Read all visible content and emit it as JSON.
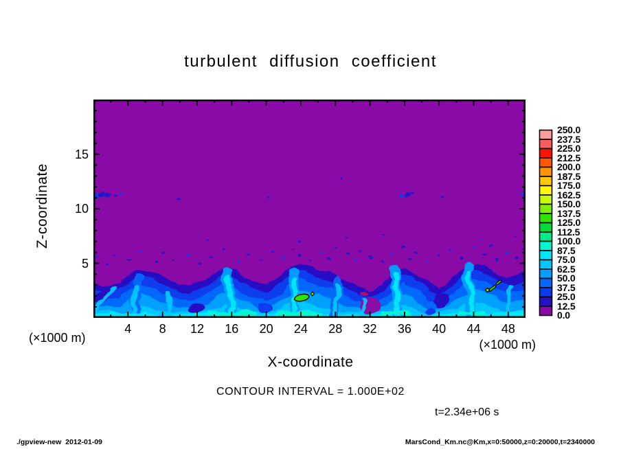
{
  "title": "turbulent diffusion coefficient",
  "plot": {
    "x_axis": {
      "label": "X-coordinate",
      "unit": "(×1000 m)",
      "range": [
        0,
        50
      ],
      "ticks": [
        4,
        8,
        12,
        16,
        20,
        24,
        28,
        32,
        36,
        40,
        44,
        48
      ],
      "minor_step": 2,
      "major_step": 4
    },
    "y_axis": {
      "label": "Z-coordinate",
      "unit": "(×1000 m)",
      "range": [
        0,
        20
      ],
      "ticks": [
        5,
        10,
        15
      ],
      "minor_step": 1,
      "major_step": 5
    }
  },
  "captions": {
    "contour_interval": "CONTOUR INTERVAL = 1.000E+02",
    "time_stamp": "t=2.34e+06 s",
    "unit_left": "(×1000 m)",
    "unit_right": "(×1000 m)"
  },
  "footer": {
    "left": "./gpview-new  2012-01-09",
    "right": "MarsCond_Km.nc@Km,x=0:50000,z=0:20000,t=2340000"
  },
  "colorbar": {
    "min": 0.0,
    "max": 250.0,
    "step": 12.5,
    "labels_top_to_bottom": [
      "250.0",
      "237.5",
      "225.0",
      "212.5",
      "200.0",
      "187.5",
      "175.0",
      "162.5",
      "150.0",
      "137.5",
      "125.0",
      "112.5",
      "100.0",
      "87.5",
      "75.0",
      "62.5",
      "50.0",
      "37.5",
      "25.0",
      "12.5",
      "0.0"
    ],
    "colors_bottom_to_top": [
      "#8A0AA8",
      "#2810C4",
      "#0A3CEC",
      "#0668FA",
      "#02A0FF",
      "#00C8FF",
      "#00E8F8",
      "#00F8D0",
      "#00EC88",
      "#00DC38",
      "#30E400",
      "#80F000",
      "#C8FC00",
      "#FFF800",
      "#FFC800",
      "#FF9400",
      "#FF5800",
      "#FC1400",
      "#FF5C5C",
      "#FF9C9C"
    ]
  },
  "chart_data": {
    "type": "heatmap",
    "title": "turbulent diffusion coefficient",
    "xlabel": "X-coordinate (×1000 m)",
    "ylabel": "Z-coordinate (×1000 m)",
    "xlim": [
      0,
      50
    ],
    "ylim": [
      0,
      20
    ],
    "value_range": [
      0.0,
      250.0
    ],
    "colorbar_step": 12.5,
    "contour_interval": 100.0,
    "time": "t=2.34e+06 s",
    "description": "Turbulent diffusion coefficient field: values below 12.5 (purple) fill most of the domain; a convective boundary layer below z≈3-5 km holds values 12.5-100 (blues/cyans) with plume cores, and a few isolated spots exceed 100 (green, outlined by the 100-contour).",
    "background_color": "#8A0AA8",
    "boundary": [
      [
        0,
        3.3
      ],
      [
        1,
        3.05
      ],
      [
        2,
        3.0
      ],
      [
        3,
        3.3
      ],
      [
        4,
        3.9
      ],
      [
        5,
        4.5
      ],
      [
        6,
        4.4
      ],
      [
        7,
        4.1
      ],
      [
        8,
        3.7
      ],
      [
        9,
        3.4
      ],
      [
        10,
        3.1
      ],
      [
        11,
        3.0
      ],
      [
        12,
        3.2
      ],
      [
        13,
        3.5
      ],
      [
        14,
        4.1
      ],
      [
        15,
        4.6
      ],
      [
        16,
        4.5
      ],
      [
        17,
        4.0
      ],
      [
        18,
        3.5
      ],
      [
        19,
        3.2
      ],
      [
        20,
        3.1
      ],
      [
        21,
        3.6
      ],
      [
        22,
        4.2
      ],
      [
        23,
        4.7
      ],
      [
        24,
        4.85
      ],
      [
        25,
        4.6
      ],
      [
        26,
        4.4
      ],
      [
        27,
        4.2
      ],
      [
        28,
        4.0
      ],
      [
        29,
        3.6
      ],
      [
        30,
        3.2
      ],
      [
        31,
        2.8
      ],
      [
        32,
        2.6
      ],
      [
        33,
        3.0
      ],
      [
        34,
        3.5
      ],
      [
        35,
        4.3
      ],
      [
        36,
        4.6
      ],
      [
        37,
        4.2
      ],
      [
        38,
        3.6
      ],
      [
        39,
        3.1
      ],
      [
        40,
        2.8
      ],
      [
        41,
        3.3
      ],
      [
        42,
        4.0
      ],
      [
        43,
        4.6
      ],
      [
        44,
        5.0
      ],
      [
        45,
        4.8
      ],
      [
        46,
        4.4
      ],
      [
        47,
        4.0
      ],
      [
        48,
        3.7
      ],
      [
        49,
        3.8
      ],
      [
        50,
        4.0
      ]
    ],
    "layers": [
      {
        "offset": 0.0,
        "floor": 2.2,
        "color": "#2810C4"
      },
      {
        "offset": -0.65,
        "floor": 1.75,
        "color": "#0A3CEC"
      },
      {
        "offset": -1.45,
        "floor": 1.35,
        "color": "#0668FA"
      },
      {
        "offset": -2.35,
        "floor": 0.95,
        "color": "#02A0FF"
      },
      {
        "offset": -3.3,
        "floor": 0.55,
        "color": "#00C8FF"
      },
      {
        "offset": -4.3,
        "floor": 0.26,
        "color": "#00E8F8"
      }
    ],
    "holes": [
      [
        32.0,
        1.15,
        1.3,
        0.75,
        "#8A0AA8"
      ],
      [
        11.8,
        0.85,
        0.95,
        0.5,
        "#2810C4"
      ],
      [
        40.3,
        1.6,
        0.85,
        0.7,
        "#2810C4"
      ],
      [
        0.9,
        1.9,
        0.8,
        0.6,
        "#2810C4"
      ],
      [
        19.8,
        0.9,
        0.9,
        0.5,
        "#0A3CEC"
      ],
      [
        38.9,
        0.7,
        0.7,
        0.4,
        "#0A3CEC"
      ],
      [
        31.4,
        2.35,
        0.55,
        0.18,
        "#B00878"
      ]
    ],
    "streaks": [
      [
        5.0,
        0.1,
        4.6,
        2.0,
        5.3,
        3.7,
        13,
        "#0668FA"
      ],
      [
        15.8,
        0.1,
        16.2,
        2.2,
        15.3,
        4.2,
        15,
        "#02A0FF"
      ],
      [
        23.5,
        0.1,
        23.1,
        2.0,
        23.2,
        4.1,
        14,
        "#02A0FF"
      ],
      [
        27.7,
        0.1,
        28.2,
        1.8,
        28.4,
        3.5,
        12,
        "#0668FA"
      ],
      [
        35.4,
        0.1,
        35.0,
        2.2,
        34.9,
        4.3,
        15,
        "#02A0FF"
      ],
      [
        43.8,
        0.1,
        43.4,
        2.4,
        43.3,
        4.7,
        15,
        "#02A0FF"
      ],
      [
        4.8,
        0.1,
        4.6,
        1.4,
        4.9,
        2.9,
        7,
        "#00C8FF"
      ],
      [
        9.0,
        0.1,
        8.7,
        1.2,
        8.6,
        2.4,
        6,
        "#00C8FF"
      ],
      [
        16.0,
        0.1,
        16.1,
        1.6,
        15.6,
        3.7,
        8,
        "#00E8F8"
      ],
      [
        23.4,
        0.1,
        23.2,
        1.6,
        23.3,
        3.3,
        7,
        "#00E8F8"
      ],
      [
        27.8,
        0.1,
        28.2,
        1.5,
        28.3,
        3.1,
        6,
        "#00C8FF"
      ],
      [
        31.1,
        0.1,
        31.2,
        0.9,
        31.3,
        1.7,
        5,
        "#00C8FF"
      ],
      [
        35.3,
        0.1,
        35.1,
        1.8,
        35.0,
        3.9,
        8,
        "#00E8F8"
      ],
      [
        44.0,
        0.1,
        43.6,
        1.8,
        43.5,
        4.1,
        7,
        "#00E8F8"
      ],
      [
        47.7,
        0.1,
        48.0,
        1.4,
        48.3,
        2.9,
        6,
        "#00C8FF"
      ],
      [
        0.2,
        0.5,
        1.2,
        1.9,
        2.6,
        2.7,
        6,
        "#00C8FF"
      ],
      [
        13.5,
        0.35,
        16.0,
        0.5,
        18.5,
        0.35,
        7,
        "#00F8D0"
      ],
      [
        21.5,
        0.3,
        23.5,
        0.5,
        26.0,
        0.3,
        7,
        "#00F8D0"
      ],
      [
        33.5,
        0.35,
        35.0,
        0.55,
        36.5,
        0.35,
        6,
        "#00F8D0"
      ],
      [
        42.5,
        0.4,
        43.8,
        0.6,
        45.2,
        0.4,
        7,
        "#00F8D0"
      ],
      [
        2.0,
        0.3,
        4.0,
        0.45,
        6.0,
        0.3,
        6,
        "#00E8F8"
      ],
      [
        46.5,
        0.3,
        48.0,
        0.45,
        49.8,
        0.3,
        6,
        "#00E8F8"
      ]
    ],
    "specks": [
      [
        0.4,
        11.25,
        0.3
      ],
      [
        1.0,
        11.3,
        0.34
      ],
      [
        1.7,
        11.28,
        0.3
      ],
      [
        2.5,
        11.18,
        0.22
      ],
      [
        3.15,
        11.38,
        0.2
      ],
      [
        9.9,
        10.95,
        0.18
      ],
      [
        20.2,
        11.0,
        0.15
      ],
      [
        28.6,
        12.75,
        0.14
      ],
      [
        35.7,
        11.15,
        0.26
      ],
      [
        36.3,
        11.3,
        0.3
      ],
      [
        36.9,
        11.45,
        0.22
      ],
      [
        40.3,
        11.05,
        0.16
      ],
      [
        49.7,
        11.3,
        0.26
      ],
      [
        49.9,
        10.8,
        0.2
      ],
      [
        33.6,
        7.6,
        0.16
      ],
      [
        29.2,
        7.35,
        0.13
      ],
      [
        44.8,
        7.2,
        0.15
      ],
      [
        13.2,
        7.1,
        0.12
      ],
      [
        48.9,
        7.5,
        0.14
      ],
      [
        23.9,
        7.0,
        0.13
      ],
      [
        0.3,
        5.6,
        0.18
      ],
      [
        1.5,
        4.95,
        0.16
      ],
      [
        2.4,
        5.8,
        0.14
      ],
      [
        4.1,
        5.3,
        0.18
      ],
      [
        5.6,
        6.1,
        0.14
      ],
      [
        7.3,
        5.05,
        0.16
      ],
      [
        8.0,
        5.9,
        0.13
      ],
      [
        9.2,
        5.4,
        0.15
      ],
      [
        11.0,
        5.7,
        0.16
      ],
      [
        12.2,
        4.95,
        0.14
      ],
      [
        13.6,
        5.5,
        0.17
      ],
      [
        15.1,
        6.2,
        0.13
      ],
      [
        16.8,
        5.15,
        0.16
      ],
      [
        18.0,
        5.8,
        0.14
      ],
      [
        19.4,
        5.35,
        0.15
      ],
      [
        20.8,
        6.0,
        0.14
      ],
      [
        22.0,
        5.45,
        0.16
      ],
      [
        23.2,
        6.3,
        0.14
      ],
      [
        23.8,
        5.7,
        0.2
      ],
      [
        25.0,
        5.2,
        0.15
      ],
      [
        26.3,
        6.0,
        0.14
      ],
      [
        27.2,
        5.5,
        0.2
      ],
      [
        27.9,
        6.4,
        0.16
      ],
      [
        29.4,
        5.8,
        0.22
      ],
      [
        30.2,
        5.3,
        0.16
      ],
      [
        30.9,
        6.1,
        0.15
      ],
      [
        32.1,
        5.6,
        0.2
      ],
      [
        33.4,
        5.05,
        0.16
      ],
      [
        34.6,
        5.9,
        0.15
      ],
      [
        35.9,
        6.5,
        0.14
      ],
      [
        36.6,
        5.4,
        0.2
      ],
      [
        37.3,
        6.0,
        0.15
      ],
      [
        38.6,
        5.2,
        0.14
      ],
      [
        39.9,
        5.7,
        0.16
      ],
      [
        41.3,
        6.2,
        0.14
      ],
      [
        42.6,
        5.5,
        0.15
      ],
      [
        43.9,
        6.4,
        0.16
      ],
      [
        45.2,
        5.8,
        0.2
      ],
      [
        45.9,
        6.6,
        0.15
      ],
      [
        46.6,
        5.35,
        0.22
      ],
      [
        47.8,
        6.0,
        0.16
      ],
      [
        49.0,
        5.5,
        0.18
      ],
      [
        49.7,
        6.3,
        0.14
      ]
    ],
    "hotspots": [
      {
        "shape": "blob",
        "x": 24.1,
        "z": 1.85,
        "rx": 0.85,
        "ry": 0.3,
        "rot": -12,
        "fill": "#30E400"
      },
      {
        "shape": "diamond",
        "x": 25.35,
        "z": 2.2,
        "s": 0.2,
        "fill": "#80F000"
      },
      {
        "shape": "streak",
        "x": 46.15,
        "z": 2.7,
        "len": 0.95,
        "w": 0.2,
        "rot": -38,
        "fill": "#30E400"
      },
      {
        "shape": "streak",
        "x": 46.9,
        "z": 3.25,
        "len": 0.7,
        "w": 0.18,
        "rot": -38,
        "fill": "#30E400"
      },
      {
        "shape": "diamond",
        "x": 45.6,
        "z": 2.55,
        "s": 0.22,
        "fill": "#80F000"
      }
    ]
  }
}
